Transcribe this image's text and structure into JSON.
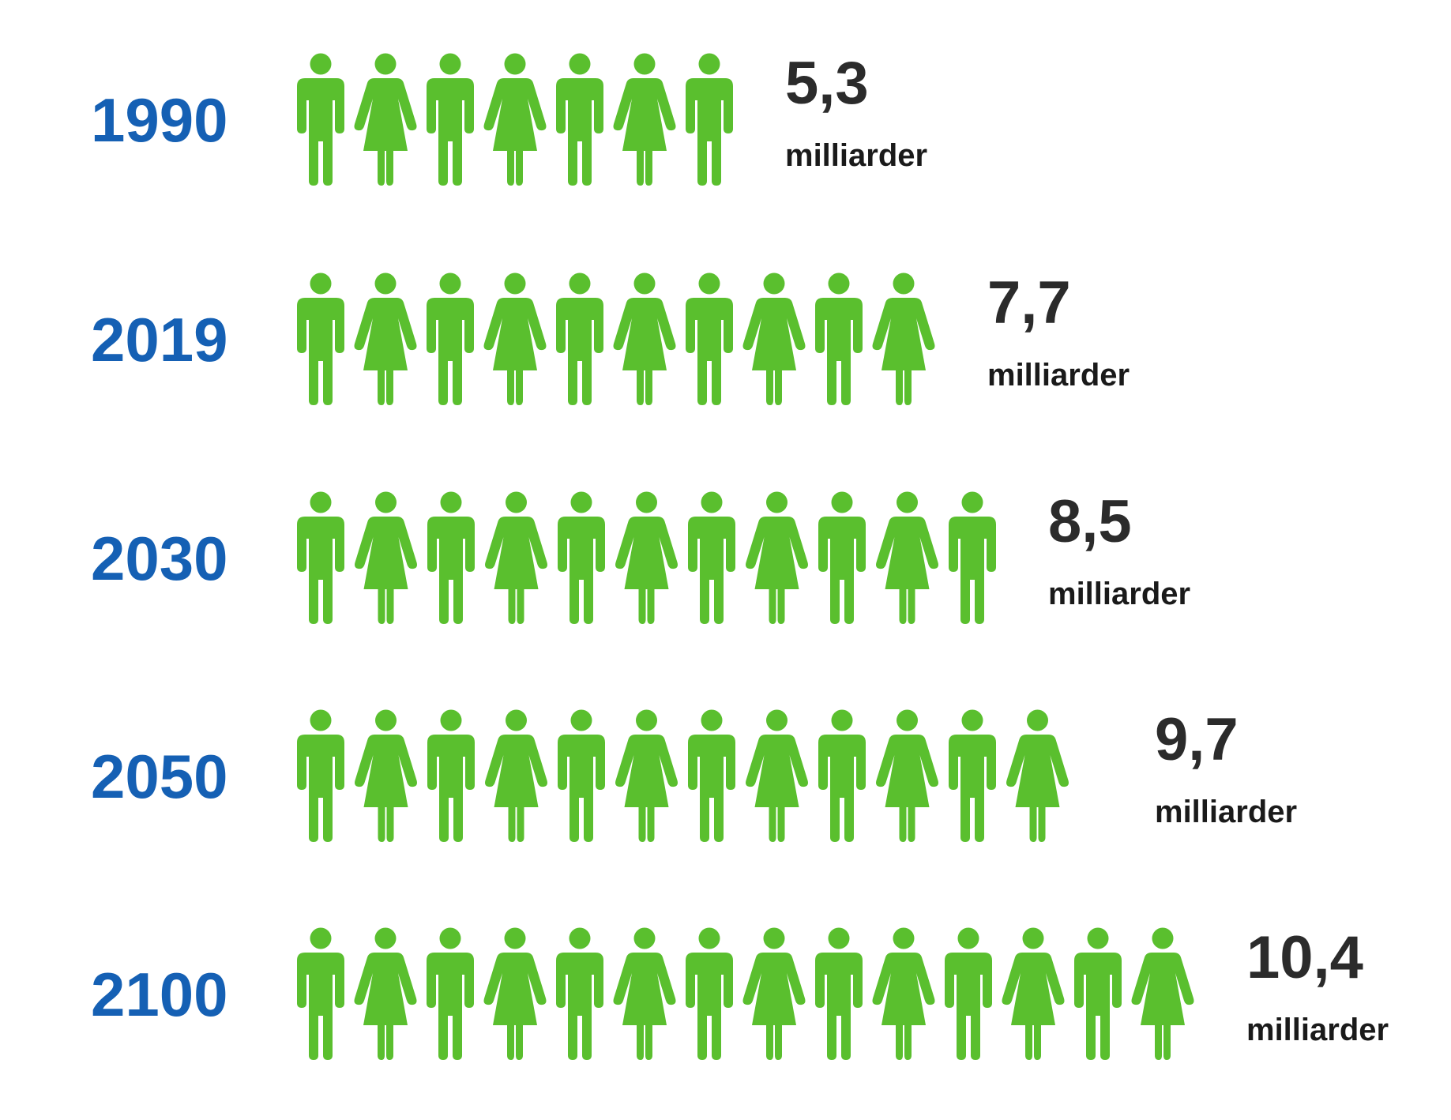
{
  "chart_data": {
    "type": "bar",
    "categories": [
      "1990",
      "2019",
      "2030",
      "2050",
      "2100"
    ],
    "values": [
      5.3,
      7.7,
      8.5,
      9.7,
      10.4
    ],
    "icon_counts": [
      7,
      10,
      11,
      12.5,
      14
    ],
    "value_labels": [
      "5,3",
      "7,7",
      "8,5",
      "9,7",
      "10,4"
    ],
    "unit_label": "milliarder",
    "icon": "person-icon (alternating male-icon / female-icon)",
    "colors": {
      "icon": "#5ABF2E",
      "year": "#1560B4",
      "value": "#2B2B2B",
      "unit": "#1A1A1A"
    }
  }
}
